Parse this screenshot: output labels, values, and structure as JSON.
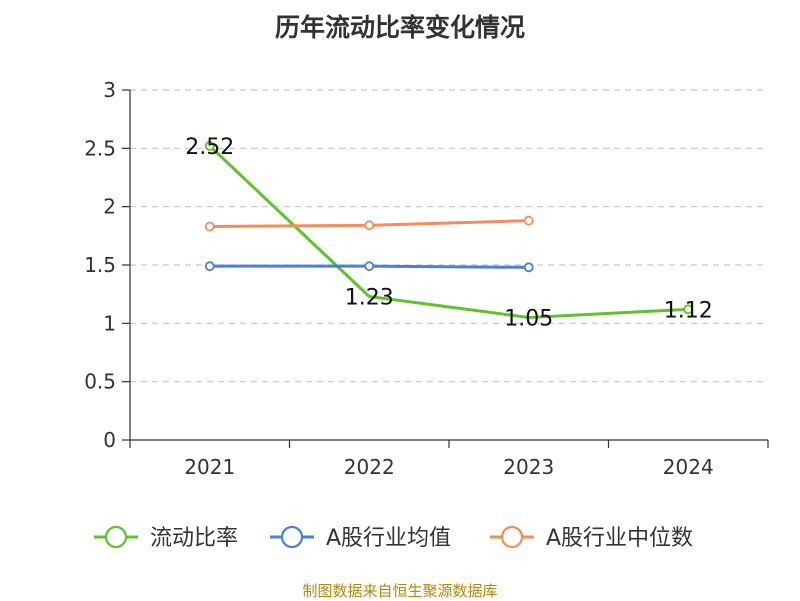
{
  "chart_data": {
    "type": "line",
    "title": "历年流动比率变化情况",
    "categories": [
      "2021",
      "2022",
      "2023",
      "2024"
    ],
    "ylim": [
      0,
      3
    ],
    "yticks": [
      "0",
      "0.5",
      "1",
      "1.5",
      "2",
      "2.5",
      "3"
    ],
    "grid": "horizontal dashed",
    "legend_position": "bottom",
    "series": [
      {
        "name": "流动比率",
        "color": "#5fc22a",
        "values": [
          2.52,
          1.23,
          1.05,
          1.12
        ],
        "labels": [
          "2.52",
          "1.23",
          "1.05",
          "1.12"
        ],
        "markers": "end-only"
      },
      {
        "name": "A股行业均值",
        "color": "#4a7fdb",
        "values": [
          1.49,
          1.49,
          1.48,
          null
        ],
        "markers": "all"
      },
      {
        "name": "A股行业中位数",
        "color": "#f58c5a",
        "values": [
          1.83,
          1.84,
          1.88,
          null
        ],
        "markers": "all"
      }
    ]
  },
  "source_note": "制图数据来自恒生聚源数据库"
}
